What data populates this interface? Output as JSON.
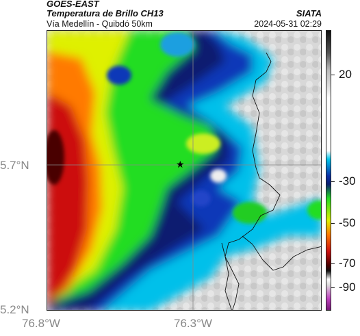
{
  "header": {
    "satellite": "GOES-EAST",
    "product": "Temperatura de Brillo CH13",
    "region": "Vía Medellín - Quibdó 50km",
    "organization": "SIATA",
    "timestamp": "2024-05-31 02:29"
  },
  "map": {
    "latitude_labels": [
      "5.7°N",
      "5.2°N"
    ],
    "longitude_labels": [
      "76.8°W",
      "76.3°W"
    ],
    "marker": "star-marker",
    "gridlines": true
  },
  "colorbar": {
    "labels": [
      "20",
      "-30",
      "-50",
      "-70",
      "-90"
    ],
    "colors": {
      "warm": "#ffffff",
      "gray_high": "#c9c9c9",
      "dark": "#111111",
      "cyan": "#00c8ee",
      "blue": "#0a2fa8",
      "navy": "#0a1f70",
      "green": "#22dd22",
      "yellow": "#e8f000",
      "orange": "#ff7a00",
      "red": "#d01010",
      "maroon": "#4a0000",
      "magenta": "#c040c0"
    }
  }
}
